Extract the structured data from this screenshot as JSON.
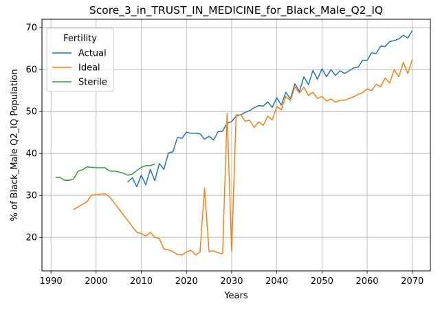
{
  "chart_data": {
    "type": "line",
    "title": "Score_3_in_TRUST_IN_MEDICINE_for_Black_Male_Q2_IQ",
    "xlabel": "Years",
    "ylabel": "% of Black_Male Q2_IQ Population",
    "xlim": [
      1988,
      2074
    ],
    "ylim": [
      12,
      72
    ],
    "xticks": [
      1990,
      2000,
      2010,
      2020,
      2030,
      2040,
      2050,
      2060,
      2070
    ],
    "yticks": [
      20,
      30,
      40,
      50,
      60,
      70
    ],
    "grid": true,
    "legend": {
      "title": "Fertility",
      "placement": "top-left",
      "entries": [
        "Actual",
        "Ideal",
        "Sterile"
      ]
    },
    "series": [
      {
        "name": "Actual",
        "color": "#1f77b4",
        "x": [
          2007,
          2008,
          2009,
          2010,
          2011,
          2012,
          2013,
          2014,
          2015,
          2016,
          2017,
          2018,
          2019,
          2020,
          2021,
          2022,
          2023,
          2024,
          2025,
          2026,
          2027,
          2028,
          2029,
          2030,
          2031,
          2032,
          2033,
          2034,
          2035,
          2036,
          2037,
          2038,
          2039,
          2040,
          2041,
          2042,
          2043,
          2044,
          2045,
          2046,
          2047,
          2048,
          2049,
          2050,
          2051,
          2052,
          2053,
          2054,
          2055,
          2056,
          2057,
          2058,
          2059,
          2060,
          2061,
          2062,
          2063,
          2064,
          2065,
          2066,
          2067,
          2068,
          2069,
          2070
        ],
        "values": [
          33.2,
          34.2,
          32.1,
          34.8,
          32.5,
          36.2,
          33.5,
          37.6,
          36.2,
          40.1,
          40.4,
          43.8,
          43.6,
          45.1,
          44.8,
          44.8,
          44.7,
          43.4,
          44.1,
          43.2,
          45.2,
          45.3,
          47.2,
          47.6,
          48.9,
          49.2,
          49.8,
          50.2,
          50.9,
          51.4,
          51.3,
          52.3,
          51.0,
          53.3,
          51.5,
          54.6,
          53.0,
          56.6,
          54.8,
          58.3,
          56.4,
          59.8,
          57.7,
          60.2,
          58.3,
          60.0,
          58.6,
          59.7,
          59.1,
          59.7,
          60.4,
          60.6,
          62.2,
          62.2,
          64.0,
          63.8,
          65.6,
          65.5,
          66.7,
          66.9,
          67.3,
          68.2,
          67.5,
          69.3
        ]
      },
      {
        "name": "Ideal",
        "color": "#ff7f0e",
        "x": [
          1995,
          1998,
          1999,
          2000,
          2001,
          2002,
          2003,
          2004,
          2005,
          2006,
          2007,
          2008,
          2009,
          2010,
          2011,
          2012,
          2013,
          2014,
          2015,
          2016,
          2017,
          2018,
          2019,
          2020,
          2021,
          2022,
          2023,
          2024,
          2025,
          2026,
          2027,
          2028,
          2029,
          2030,
          2031,
          2032,
          2033,
          2034,
          2035,
          2036,
          2037,
          2038,
          2039,
          2040,
          2041,
          2042,
          2043,
          2044,
          2045,
          2046,
          2047,
          2048,
          2049,
          2050,
          2051,
          2052,
          2053,
          2054,
          2055,
          2056,
          2057,
          2058,
          2059,
          2060,
          2061,
          2062,
          2063,
          2064,
          2065,
          2066,
          2067,
          2068,
          2069,
          2070
        ],
        "values": [
          26.6,
          28.5,
          30.1,
          30.2,
          30.3,
          30.4,
          29.6,
          28.2,
          26.8,
          25.4,
          24.0,
          22.6,
          21.2,
          20.9,
          20.3,
          21.2,
          20.0,
          19.7,
          17.2,
          17.0,
          16.6,
          15.9,
          15.8,
          16.5,
          16.9,
          15.8,
          16.5,
          31.7,
          16.6,
          16.8,
          16.3,
          16.1,
          49.5,
          16.7,
          49.2,
          49.2,
          47.7,
          47.9,
          46.2,
          47.5,
          46.7,
          48.9,
          48.0,
          51.2,
          50.4,
          53.6,
          52.6,
          55.9,
          54.4,
          55.8,
          53.8,
          54.6,
          53.1,
          53.6,
          52.5,
          53.0,
          52.2,
          52.7,
          52.7,
          53.1,
          53.5,
          54.1,
          54.5,
          55.4,
          55.0,
          56.5,
          55.9,
          58.0,
          56.8,
          60.0,
          58.3,
          61.7,
          59.1,
          62.4
        ]
      },
      {
        "name": "Sterile",
        "color": "#2ca02c",
        "x": [
          1991,
          1992,
          1993,
          1994,
          1995,
          1996,
          1997,
          1998,
          1999,
          2000,
          2001,
          2002,
          2003,
          2004,
          2005,
          2006,
          2007,
          2008,
          2009,
          2010,
          2011,
          2012,
          2013
        ],
        "values": [
          34.3,
          34.3,
          33.6,
          33.6,
          33.9,
          35.8,
          36.1,
          36.8,
          36.7,
          36.6,
          36.6,
          36.6,
          35.8,
          35.8,
          35.6,
          35.3,
          34.8,
          35.1,
          35.9,
          36.7,
          37.1,
          37.1,
          37.5
        ]
      }
    ]
  }
}
